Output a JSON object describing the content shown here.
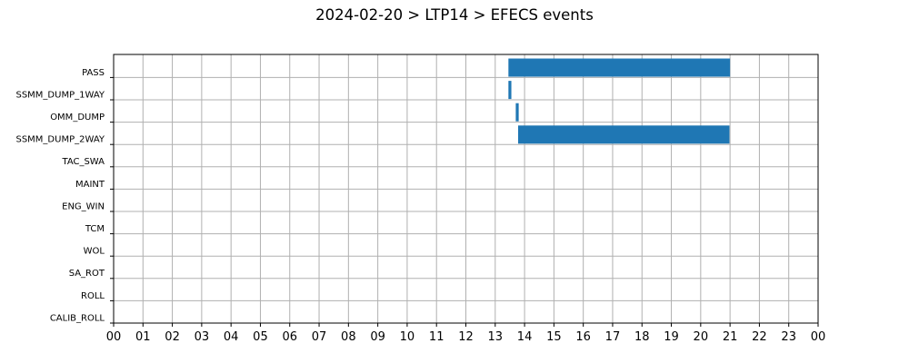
{
  "chart_data": {
    "type": "bar",
    "orientation": "horizontal-gantt",
    "title": "2024-02-20 > LTP14 > EFECS events",
    "xlabel": "",
    "ylabel": "",
    "xlim": [
      0,
      24
    ],
    "grid": true,
    "bar_color": "#1f77b4",
    "categories": [
      "PASS",
      "SSMM_DUMP_1WAY",
      "OMM_DUMP",
      "SSMM_DUMP_2WAY",
      "TAC_SWA",
      "MAINT",
      "ENG_WIN",
      "TCM",
      "WOL",
      "SA_ROT",
      "ROLL",
      "CALIB_ROLL"
    ],
    "x_tick_labels": [
      "00",
      "01",
      "02",
      "03",
      "04",
      "05",
      "06",
      "07",
      "08",
      "09",
      "10",
      "11",
      "12",
      "13",
      "14",
      "15",
      "16",
      "17",
      "18",
      "19",
      "20",
      "21",
      "22",
      "23",
      "00"
    ],
    "intervals": [
      {
        "category": "PASS",
        "start": 13.45,
        "end": 21.0
      },
      {
        "category": "SSMM_DUMP_1WAY",
        "start": 13.45,
        "end": 13.55
      },
      {
        "category": "OMM_DUMP",
        "start": 13.7,
        "end": 13.8
      },
      {
        "category": "SSMM_DUMP_2WAY",
        "start": 13.78,
        "end": 20.98
      }
    ]
  }
}
